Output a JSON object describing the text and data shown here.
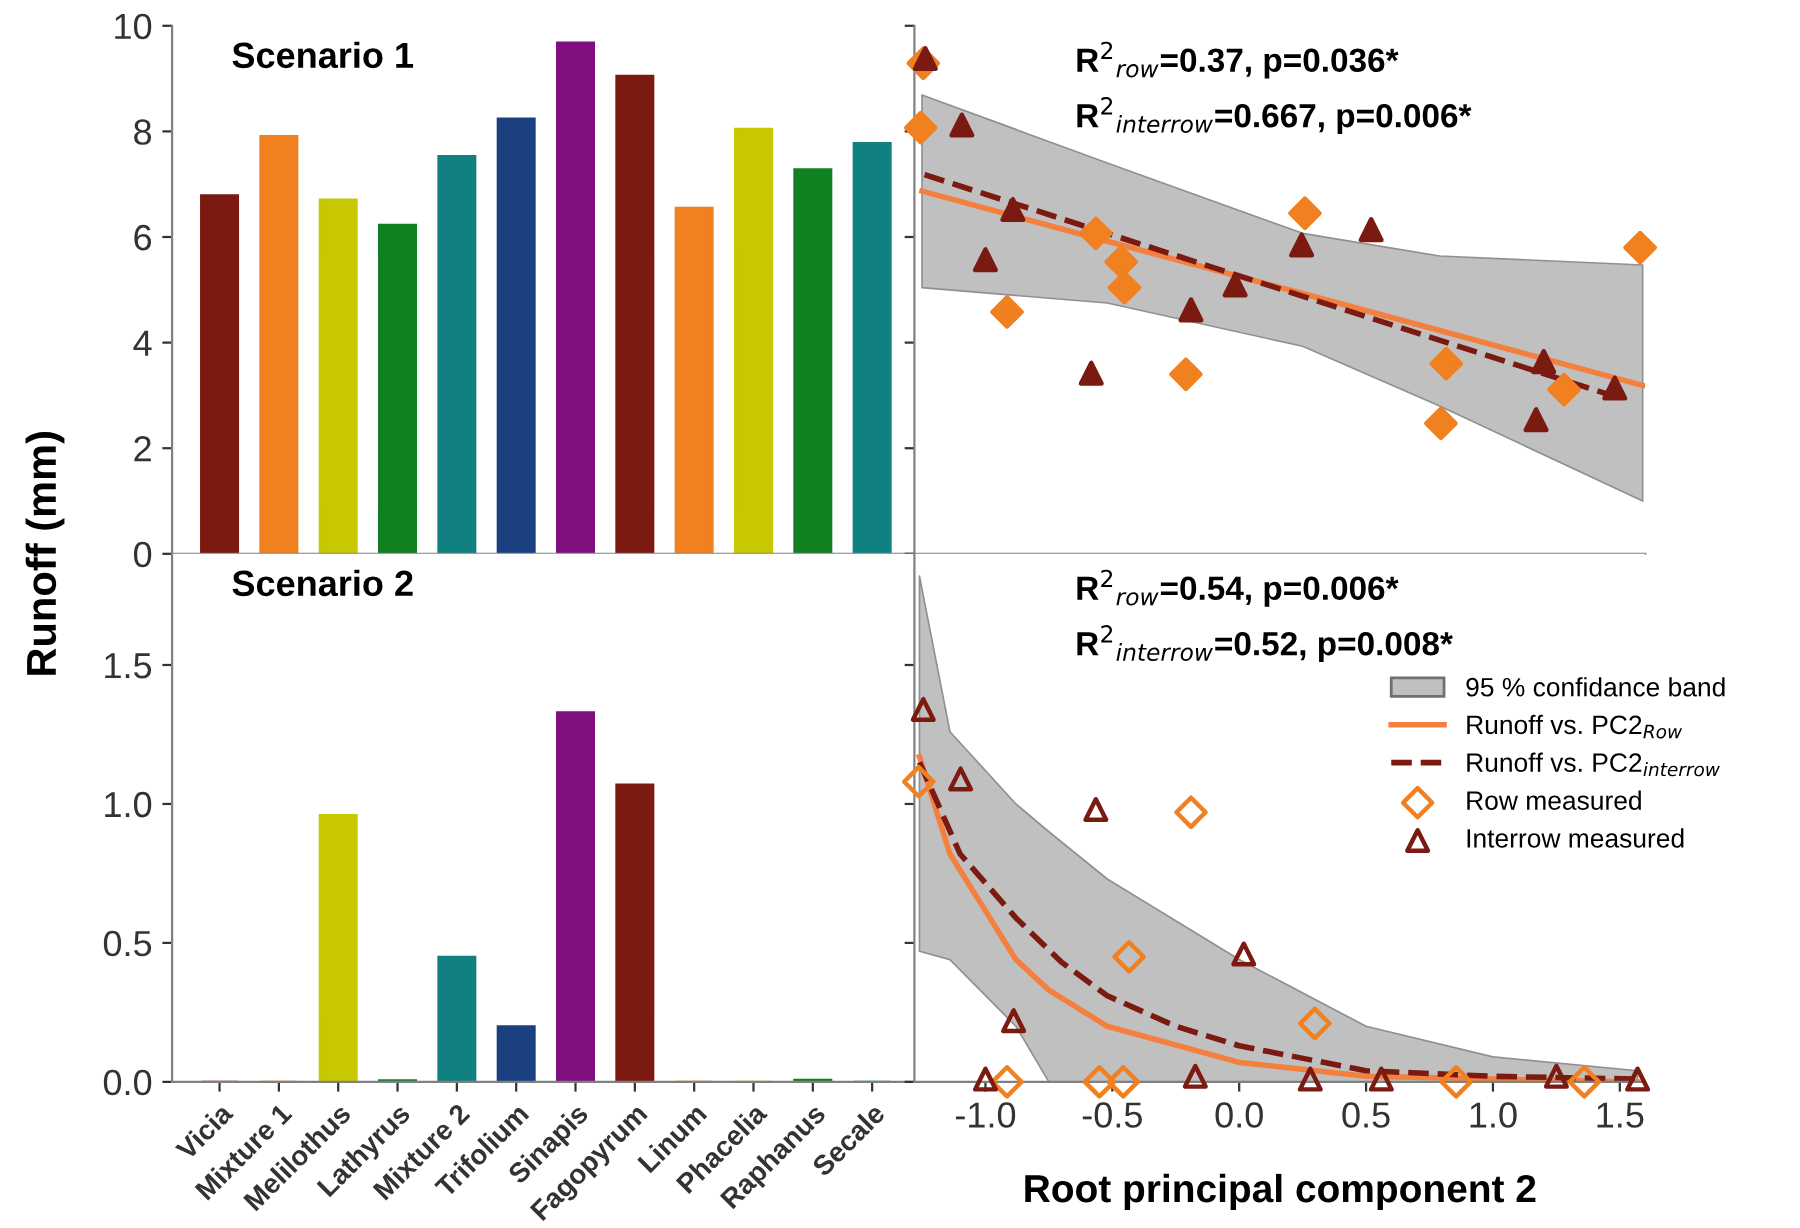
{
  "chart_data": [
    {
      "type": "bar",
      "title": "Scenario 1",
      "ylabel": "Runoff (mm)",
      "categories": [
        null,
        null,
        null,
        null,
        null,
        null,
        null,
        null,
        null,
        null,
        null,
        null
      ],
      "values": [
        6.79,
        7.91,
        6.71,
        6.23,
        7.53,
        8.24,
        9.68,
        9.05,
        6.55,
        8.05,
        7.28,
        7.78
      ],
      "colors": [
        "#7b1a10",
        "#f08020",
        "#c8c800",
        "#108020",
        "#108080",
        "#1a4080",
        "#801080",
        "#7b1a10",
        "#f08020",
        "#c8c800",
        "#108020",
        "#108080"
      ],
      "ylim": [
        0,
        10
      ],
      "yticks": [
        0,
        2,
        4,
        6,
        8,
        10
      ],
      "tick_labels": "y"
    },
    {
      "type": "scatter",
      "annotations": [
        "R$^{2}$$_{row}$=0.37, p=0.036*",
        "R$^{2}$$_{interrow}$=0.667, p=0.006*"
      ],
      "series": [
        {
          "type": "area",
          "color": "#c0c0c0"
        },
        {
          "type": "line",
          "color": "#f48040",
          "line_style": "solid",
          "x": [
            -1.25,
            -0.52,
            0.25,
            0.79,
            1.59
          ],
          "values": [
            6.87,
            5.92,
            4.93,
            4.23,
            3.19
          ],
          "lower": [
            5.04,
            4.75,
            3.93,
            2.8,
            1.0
          ],
          "upper": [
            8.69,
            7.4,
            6.07,
            5.64,
            5.47
          ]
        },
        {
          "type": "line",
          "color": "#7b1a10",
          "line_style": "dashed",
          "x": [
            -1.24,
            1.48
          ],
          "values": [
            7.18,
            2.98
          ]
        },
        {
          "type": "scatter",
          "color": "#f08020",
          "marker": "diamond",
          "x": [
            -1.245,
            -1.255,
            -0.915,
            -0.565,
            -0.465,
            -0.452,
            -0.21,
            0.259,
            0.816,
            0.795,
            1.28,
            1.58
          ],
          "values": [
            9.29,
            8.07,
            4.58,
            6.07,
            5.53,
            5.04,
            3.4,
            6.45,
            3.6,
            2.47,
            3.11,
            5.8
          ]
        },
        {
          "type": "scatter",
          "color": "#7b1a10",
          "marker": "triangle",
          "x": [
            -1.237,
            -1.093,
            -0.892,
            -1.0,
            -0.583,
            -0.19,
            -0.016,
            0.246,
            0.52,
            1.2,
            1.17,
            1.48
          ],
          "values": [
            9.38,
            8.12,
            6.52,
            5.57,
            3.42,
            4.62,
            5.09,
            5.85,
            6.14,
            3.64,
            2.54,
            3.14
          ]
        }
      ],
      "xlim": [
        -1.28,
        1.6
      ],
      "ylim": [
        0,
        10
      ],
      "yticks": [
        0,
        2,
        4,
        6,
        8,
        10
      ],
      "tick_labels": false
    },
    {
      "type": "bar",
      "title": "Scenario 2",
      "categories": [
        "Vicia",
        "Mixture 1",
        "Melilothus",
        "Lathyrus",
        "Mixture 2",
        "Trifolium",
        "Sinapis",
        "Fagopyrum",
        "Linum",
        "Phacelia",
        "Raphanus",
        "Secale"
      ],
      "values": [
        0,
        0,
        0.96,
        0.005,
        0.45,
        0.2,
        1.33,
        1.07,
        0,
        0,
        0.007,
        0
      ],
      "colors": [
        "#7b1a10",
        "#f08020",
        "#c8c800",
        "#108020",
        "#108080",
        "#1a4080",
        "#801080",
        "#7b1a10",
        "#f08020",
        "#c8c800",
        "#108020",
        "#108080"
      ],
      "ylim": [
        0,
        1.9
      ],
      "yticks": [
        {
          "value": 0,
          "label": "0.0"
        },
        {
          "value": 0.5,
          "label": "0.5"
        },
        {
          "value": 1,
          "label": "1.0"
        },
        {
          "value": 1.5,
          "label": "1.5"
        }
      ]
    },
    {
      "type": "scatter",
      "xlabel": "Root principal component 2",
      "annotations": [
        "R$^{2}$$_{row}$=0.54, p=0.006*",
        "R$^{2}$$_{interrow}$=0.52, p=0.008*"
      ],
      "legend": "right",
      "series": [
        {
          "name": "95 % confidance band",
          "type": "area",
          "color": "#c0c0c0"
        },
        {
          "name": "Runoff vs. PC2$_{Row}$",
          "type": "line",
          "color": "#f48040",
          "line_style": "solid",
          "x": [
            -1.26,
            -1.14,
            -0.88,
            -0.75,
            -0.52,
            0.0,
            0.5,
            1.0,
            1.57
          ],
          "values": [
            1.17,
            0.82,
            0.44,
            0.33,
            0.2,
            0.07,
            0.02,
            0.01,
            0.0
          ],
          "lower": [
            0.47,
            0.44,
            0.2,
            0.0,
            0.0,
            0.0,
            0.0,
            0.0,
            0.0
          ],
          "upper": [
            1.82,
            1.26,
            1.0,
            0.9,
            0.73,
            0.44,
            0.2,
            0.09,
            0.04
          ]
        },
        {
          "name": "Runoff vs. PC2$_{interrow}$",
          "type": "line",
          "color": "#7b1a10",
          "line_style": "dashed",
          "x": [
            -1.26,
            -1.1,
            -0.88,
            -0.7,
            -0.52,
            -0.25,
            0.0,
            0.5,
            1.0,
            1.57
          ],
          "values": [
            1.15,
            0.82,
            0.59,
            0.43,
            0.31,
            0.2,
            0.13,
            0.04,
            0.02,
            0.01
          ]
        },
        {
          "name": "Row measured",
          "type": "scatter",
          "color": "#f08020",
          "marker": "diamond",
          "x": [
            -1.263,
            -0.19,
            -0.434,
            0.298,
            -0.915,
            -0.551,
            -0.457,
            0.855,
            1.36
          ],
          "values": [
            1.08,
            0.97,
            0.45,
            0.21,
            0.0,
            0.0,
            0.0,
            0.0,
            0.0
          ]
        },
        {
          "name": "Interrow measured",
          "type": "scatter",
          "color": "#7b1a10",
          "marker": "triangle",
          "x": [
            -1.245,
            -1.098,
            -0.565,
            0.018,
            -0.889,
            -1.0,
            -0.173,
            0.28,
            0.56,
            1.25,
            1.57
          ],
          "values": [
            1.34,
            1.09,
            0.98,
            0.46,
            0.22,
            0.01,
            0.02,
            0.01,
            0.01,
            0.02,
            0.01
          ]
        }
      ],
      "xlim": [
        -1.28,
        1.6
      ],
      "xticks": [
        {
          "value": -1.0,
          "label": "-1.0"
        },
        {
          "value": -0.5,
          "label": "-0.5"
        },
        {
          "value": 0.0,
          "label": "0.0"
        },
        {
          "value": 0.5,
          "label": "0.5"
        },
        {
          "value": 1.0,
          "label": "1.0"
        },
        {
          "value": 1.5,
          "label": "1.5"
        }
      ],
      "ylim": [
        0,
        1.9
      ],
      "yticks": [
        {
          "value": 0,
          "label": null
        },
        {
          "value": 0.5,
          "label": null
        },
        {
          "value": 1,
          "label": null
        },
        {
          "value": 1.5,
          "label": null
        }
      ],
      "tick_labels": "x"
    }
  ]
}
